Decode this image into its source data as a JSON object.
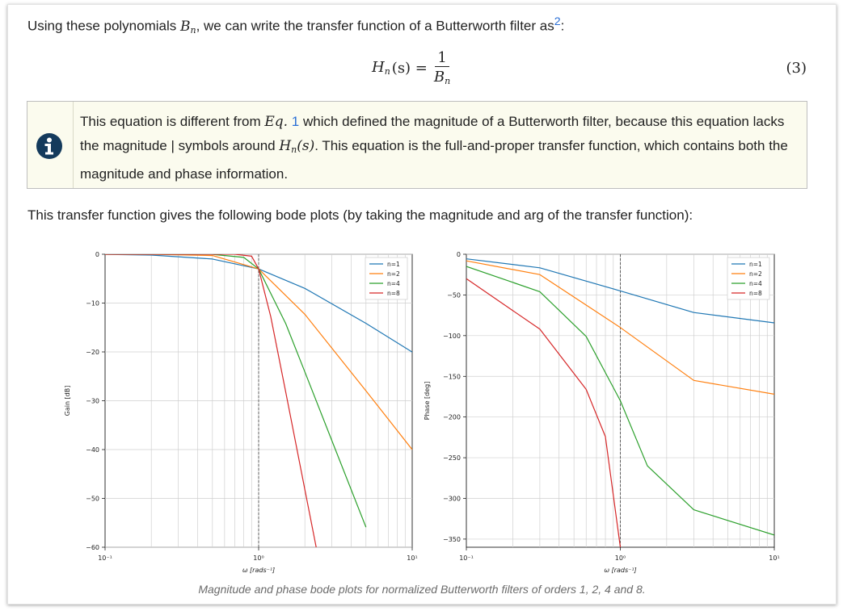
{
  "intro": {
    "before": "Using these polynomials ",
    "var": "B",
    "sub": "n",
    "after": ", we can write the transfer function of a Butterworth filter as",
    "ref": "2",
    "end": ":"
  },
  "equation": {
    "lhs": "H",
    "lhs_sub": "n",
    "arg": "(s) =",
    "num": "1",
    "den": "B",
    "den_sub": "n",
    "number": "(3)"
  },
  "note": {
    "icon": "info-icon",
    "t1": "This equation is different from ",
    "eq_label": "Eq.",
    "eq_ref": "1",
    "t2": " which defined the magnitude of a Butterworth filter, because this equation lacks the magnitude | symbols around ",
    "h": "H",
    "h_sub": "n",
    "h_arg": "(s)",
    "t3": ". This equation is the full-and-proper transfer function, which contains both the magnitude and phase information."
  },
  "para2": "This transfer function gives the following bode plots (by taking the magnitude and arg of the transfer function):",
  "caption": "Magnitude and phase bode plots for normalized Butterworth filters of orders 1, 2, 4 and 8.",
  "colors": {
    "n1": "#1f77b4",
    "n2": "#ff7f0e",
    "n4": "#2ca02c",
    "n8": "#d62728"
  },
  "chart_data": [
    {
      "type": "line",
      "xscale": "log",
      "xlim": [
        0.1,
        10
      ],
      "ylim": [
        -60,
        0
      ],
      "xlabel": "ω [rads⁻¹]",
      "ylabel": "Gain [dB]",
      "yticks": [
        "0",
        "−10",
        "−20",
        "−30",
        "−40",
        "−50",
        "−60"
      ],
      "xticks": [
        "10⁻¹",
        "10⁰",
        "10¹"
      ],
      "grid": true,
      "legend": "top-right",
      "marker_x": 1,
      "series": [
        {
          "name": "n=1",
          "x": [
            0.1,
            0.2,
            0.5,
            1,
            2,
            5,
            10
          ],
          "values": [
            -0.04,
            -0.17,
            -0.97,
            -3.01,
            -6.99,
            -14.15,
            -20.04
          ]
        },
        {
          "name": "n=2",
          "x": [
            0.1,
            0.2,
            0.5,
            1,
            2,
            5,
            10
          ],
          "values": [
            0,
            0,
            -0.26,
            -3.01,
            -12.3,
            -27.96,
            -40
          ]
        },
        {
          "name": "n=4",
          "x": [
            0.1,
            0.5,
            0.8,
            1,
            1.5,
            2,
            3,
            5
          ],
          "values": [
            0,
            -0.02,
            -0.65,
            -3.01,
            -14.2,
            -24.1,
            -38.2,
            -55.9
          ]
        },
        {
          "name": "n=8",
          "x": [
            0.1,
            0.7,
            0.9,
            1,
            1.2,
            1.5,
            2,
            2.5
          ],
          "values": [
            0,
            0,
            -0.4,
            -3.01,
            -12.8,
            -28.2,
            -48.2,
            -63.7
          ]
        }
      ]
    },
    {
      "type": "line",
      "xscale": "log",
      "xlim": [
        0.1,
        10
      ],
      "ylim": [
        -360,
        0
      ],
      "xlabel": "ω [rads⁻¹]",
      "ylabel": "Phase [deg]",
      "yticks": [
        "0",
        "−50",
        "−100",
        "−150",
        "−200",
        "−250",
        "−300",
        "−350"
      ],
      "xticks": [
        "10⁻¹",
        "10⁰",
        "10¹"
      ],
      "grid": true,
      "legend": "top-right",
      "marker_x": 1,
      "series": [
        {
          "name": "n=1",
          "x": [
            0.1,
            0.3,
            1,
            3,
            10
          ],
          "values": [
            -5.7,
            -16.7,
            -45,
            -71.6,
            -84.3
          ]
        },
        {
          "name": "n=2",
          "x": [
            0.1,
            0.3,
            1,
            3,
            10
          ],
          "values": [
            -8.1,
            -25,
            -90,
            -155,
            -172
          ]
        },
        {
          "name": "n=4",
          "x": [
            0.1,
            0.3,
            0.6,
            1,
            1.5,
            3,
            10
          ],
          "values": [
            -15,
            -46,
            -101,
            -180,
            -260,
            -314,
            -345
          ]
        },
        {
          "name": "n=8",
          "x": [
            0.1,
            0.3,
            0.6,
            0.8,
            1
          ],
          "values": [
            -30,
            -92,
            -166,
            -224,
            -360
          ]
        }
      ]
    }
  ]
}
